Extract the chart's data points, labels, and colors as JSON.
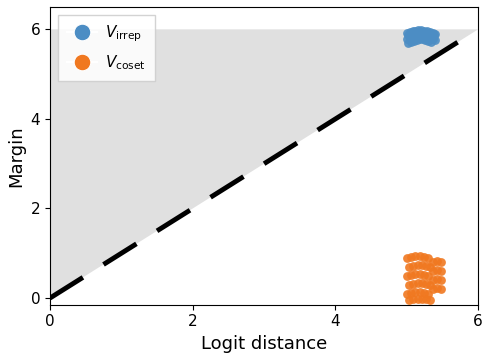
{
  "title": "",
  "xlabel": "Logit distance",
  "ylabel": "Margin",
  "xlim": [
    0,
    6
  ],
  "ylim": [
    -0.15,
    6.5
  ],
  "xticks": [
    0,
    2,
    4,
    6
  ],
  "yticks": [
    0,
    2,
    4,
    6
  ],
  "diagonal_line": {
    "x": [
      0,
      6
    ],
    "y": [
      0,
      6
    ],
    "color": "black",
    "linewidth": 3.5
  },
  "fill_color": "#e0e0e0",
  "irrep_color": "#4C8DC4",
  "coset_color": "#F07820",
  "irrep_points": {
    "x": [
      5.0,
      5.04,
      5.08,
      5.12,
      5.16,
      5.2,
      5.24,
      5.28,
      5.32,
      5.36,
      5.4,
      5.0,
      5.04,
      5.08,
      5.12,
      5.16,
      5.2,
      5.24,
      5.28,
      5.32,
      5.36,
      5.4,
      5.02,
      5.06,
      5.1,
      5.14,
      5.18,
      5.22,
      5.26,
      5.3,
      5.34,
      5.38,
      5.02,
      5.06,
      5.1,
      5.14,
      5.18,
      5.22,
      5.26,
      5.3,
      5.34
    ],
    "y": [
      5.92,
      5.94,
      5.96,
      5.97,
      5.98,
      5.98,
      5.97,
      5.96,
      5.94,
      5.92,
      5.9,
      5.78,
      5.8,
      5.82,
      5.84,
      5.86,
      5.86,
      5.84,
      5.82,
      5.8,
      5.78,
      5.76,
      5.88,
      5.9,
      5.92,
      5.94,
      5.95,
      5.95,
      5.94,
      5.92,
      5.9,
      5.88,
      5.7,
      5.72,
      5.74,
      5.76,
      5.78,
      5.78,
      5.76,
      5.74,
      5.72
    ]
  },
  "coset_points": {
    "x": [
      5.0,
      5.06,
      5.12,
      5.18,
      5.24,
      5.3,
      5.03,
      5.09,
      5.15,
      5.21,
      5.27,
      5.33,
      5.0,
      5.06,
      5.12,
      5.18,
      5.24,
      5.3,
      5.03,
      5.09,
      5.15,
      5.21,
      5.27,
      5.33,
      5.0,
      5.06,
      5.12,
      5.18,
      5.24,
      5.3,
      5.03,
      5.09,
      5.15,
      5.21,
      5.27,
      5.33,
      5.36,
      5.42,
      5.48,
      5.36,
      5.42,
      5.48,
      5.36,
      5.42,
      5.48,
      5.36,
      5.42,
      5.48
    ],
    "y": [
      0.9,
      0.92,
      0.94,
      0.94,
      0.92,
      0.9,
      0.7,
      0.72,
      0.74,
      0.74,
      0.72,
      0.7,
      0.5,
      0.52,
      0.54,
      0.54,
      0.52,
      0.5,
      0.3,
      0.32,
      0.34,
      0.34,
      0.32,
      0.3,
      0.1,
      0.12,
      0.14,
      0.14,
      0.12,
      0.1,
      -0.05,
      -0.03,
      -0.01,
      -0.01,
      -0.03,
      -0.05,
      0.8,
      0.82,
      0.8,
      0.6,
      0.62,
      0.6,
      0.4,
      0.42,
      0.4,
      0.2,
      0.22,
      0.2
    ]
  },
  "scatter_size": 40,
  "scatter_alpha": 0.9,
  "legend_label_irrep": "$V_{\\mathrm{irrep}}$",
  "legend_label_coset": "$V_{\\mathrm{coset}}$",
  "background_color": "#ffffff"
}
